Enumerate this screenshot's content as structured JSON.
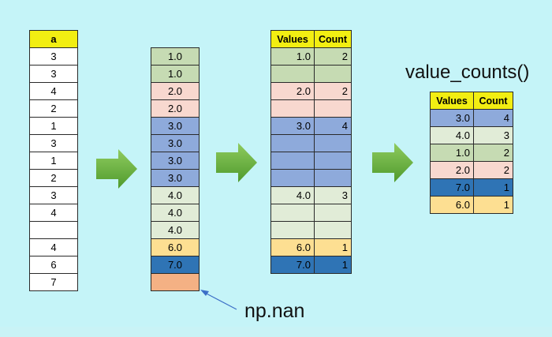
{
  "column_a": {
    "header": "a",
    "values": [
      "3",
      "3",
      "4",
      "2",
      "1",
      "3",
      "1",
      "2",
      "3",
      "4",
      "",
      "4",
      "6",
      "7"
    ]
  },
  "sorted": {
    "cells": [
      {
        "text": "1.0",
        "color": "green"
      },
      {
        "text": "1.0",
        "color": "green"
      },
      {
        "text": "2.0",
        "color": "pink"
      },
      {
        "text": "2.0",
        "color": "pink"
      },
      {
        "text": "3.0",
        "color": "blue"
      },
      {
        "text": "3.0",
        "color": "blue"
      },
      {
        "text": "3.0",
        "color": "blue"
      },
      {
        "text": "3.0",
        "color": "blue"
      },
      {
        "text": "4.0",
        "color": "lightgreen"
      },
      {
        "text": "4.0",
        "color": "lightgreen"
      },
      {
        "text": "4.0",
        "color": "lightgreen"
      },
      {
        "text": "6.0",
        "color": "yellow"
      },
      {
        "text": "7.0",
        "color": "darkblue"
      },
      {
        "text": "",
        "color": "orange"
      }
    ]
  },
  "grouped": {
    "headers": [
      "Values",
      "Count"
    ],
    "rows": [
      {
        "value": "1.0",
        "count": "2",
        "color": "green"
      },
      {
        "value": "",
        "count": "",
        "color": "green"
      },
      {
        "value": "2.0",
        "count": "2",
        "color": "pink"
      },
      {
        "value": "",
        "count": "",
        "color": "pink"
      },
      {
        "value": "3.0",
        "count": "4",
        "color": "blue"
      },
      {
        "value": "",
        "count": "",
        "color": "blue"
      },
      {
        "value": "",
        "count": "",
        "color": "blue"
      },
      {
        "value": "",
        "count": "",
        "color": "blue"
      },
      {
        "value": "4.0",
        "count": "3",
        "color": "lightgreen"
      },
      {
        "value": "",
        "count": "",
        "color": "lightgreen"
      },
      {
        "value": "",
        "count": "",
        "color": "lightgreen"
      },
      {
        "value": "6.0",
        "count": "1",
        "color": "yellow"
      },
      {
        "value": "7.0",
        "count": "1",
        "color": "darkblue"
      }
    ]
  },
  "result": {
    "title": "value_counts()",
    "headers": [
      "Values",
      "Count"
    ],
    "rows": [
      {
        "value": "3.0",
        "count": "4",
        "color": "blue"
      },
      {
        "value": "4.0",
        "count": "3",
        "color": "lightgreen"
      },
      {
        "value": "1.0",
        "count": "2",
        "color": "green"
      },
      {
        "value": "2.0",
        "count": "2",
        "color": "pink"
      },
      {
        "value": "7.0",
        "count": "1",
        "color": "darkblue"
      },
      {
        "value": "6.0",
        "count": "1",
        "color": "yellow"
      }
    ]
  },
  "nan_label": "np.nan",
  "colors": {
    "background": "#c5f4f8",
    "header": "#f2ee12",
    "arrow": "#6fb03f"
  }
}
